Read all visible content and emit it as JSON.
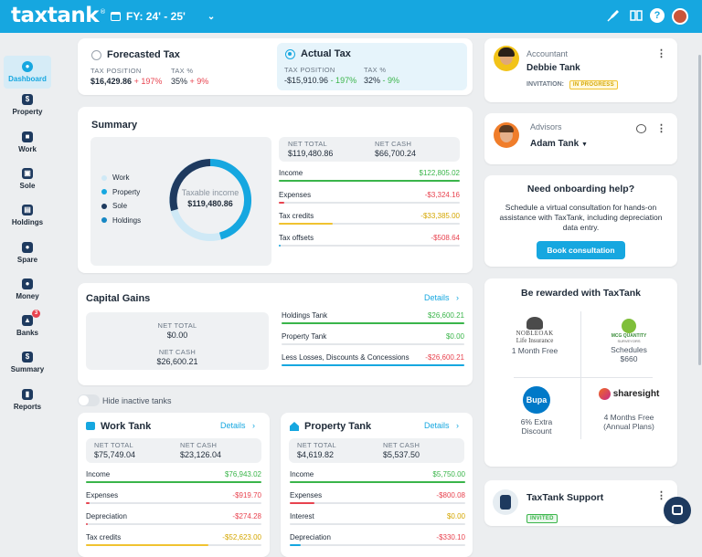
{
  "brand": {
    "name": "taxtank",
    "reg": "®"
  },
  "fy": {
    "label": "FY: 24' - 25'"
  },
  "sidebar": [
    {
      "label": "Dashboard",
      "icon": "gauge-icon",
      "active": true
    },
    {
      "label": "Property",
      "icon": "dollar-icon"
    },
    {
      "label": "Work",
      "icon": "briefcase-icon"
    },
    {
      "label": "Sole",
      "icon": "store-icon"
    },
    {
      "label": "Holdings",
      "icon": "holdings-icon"
    },
    {
      "label": "Spare",
      "icon": "coins-icon"
    },
    {
      "label": "Money",
      "icon": "piggy-icon"
    },
    {
      "label": "Banks",
      "icon": "bank-icon",
      "badge": "3"
    },
    {
      "label": "Summary",
      "icon": "dollar-doc-icon"
    },
    {
      "label": "Reports",
      "icon": "bar-chart-icon"
    }
  ],
  "tax": {
    "forecasted": {
      "title": "Forecasted Tax",
      "pos_label": "TAX POSITION",
      "pos": "$16,429.86",
      "pos_delta": "+ 197%",
      "pct_label": "TAX %",
      "pct": "35%",
      "pct_delta": "+ 9%"
    },
    "actual": {
      "title": "Actual Tax",
      "pos_label": "TAX POSITION",
      "pos": "-$15,910.96",
      "pos_delta": "- 197%",
      "pct_label": "TAX %",
      "pct": "32%",
      "pct_delta": "- 9%"
    }
  },
  "summary": {
    "title": "Summary",
    "legend": [
      "Work",
      "Property",
      "Sole",
      "Holdings"
    ],
    "donut_label": "Taxable income",
    "donut_value": "$119,480.86",
    "net_total_label": "NET TOTAL",
    "net_total": "$119,480.86",
    "net_cash_label": "NET CASH",
    "net_cash": "$66,700.24",
    "rows": [
      {
        "label": "Income",
        "value": "$122,805.02",
        "fill": 1.0,
        "color": "#3ab54a"
      },
      {
        "label": "Expenses",
        "value": "-$3,324.16",
        "fill": 0.03,
        "color": "#e8434f"
      },
      {
        "label": "Tax credits",
        "value": "-$33,385.00",
        "fill": 0.3,
        "color": "#f0c330"
      },
      {
        "label": "Tax offsets",
        "value": "-$508.64",
        "fill": 0.01,
        "color": "#16a7e0"
      }
    ]
  },
  "capital": {
    "title": "Capital Gains",
    "details": "Details",
    "net_total_label": "NET TOTAL",
    "net_total": "$0.00",
    "net_cash_label": "NET CASH",
    "net_cash": "$26,600.21",
    "rows": [
      {
        "label": "Holdings Tank",
        "value": "$26,600.21",
        "fill": 1.0,
        "color": "#3ab54a"
      },
      {
        "label": "Property Tank",
        "value": "$0.00",
        "fill": 0,
        "color": "#3ab54a"
      },
      {
        "label": "Less Losses, Discounts & Concessions",
        "value": "-$26,600.21",
        "fill": 1.0,
        "color": "#16a7e0"
      }
    ]
  },
  "toggle": {
    "label": "Hide inactive tanks"
  },
  "work": {
    "title": "Work Tank",
    "details": "Details",
    "net_total_label": "NET TOTAL",
    "net_total": "$75,749.04",
    "net_cash_label": "NET CASH",
    "net_cash": "$23,126.04",
    "rows": [
      {
        "label": "Income",
        "value": "$76,943.02",
        "fill": 1.0,
        "color": "#3ab54a"
      },
      {
        "label": "Expenses",
        "value": "-$919.70",
        "fill": 0.02,
        "color": "#e8434f"
      },
      {
        "label": "Depreciation",
        "value": "-$274.28",
        "fill": 0.01,
        "color": "#e8434f"
      },
      {
        "label": "Tax credits",
        "value": "-$52,623.00",
        "fill": 0.7,
        "color": "#f0c330"
      }
    ]
  },
  "property": {
    "title": "Property Tank",
    "details": "Details",
    "net_total_label": "NET TOTAL",
    "net_total": "$4,619.82",
    "net_cash_label": "NET CASH",
    "net_cash": "$5,537.50",
    "rows": [
      {
        "label": "Income",
        "value": "$5,750.00",
        "fill": 1.0,
        "color": "#3ab54a"
      },
      {
        "label": "Expenses",
        "value": "-$800.08",
        "fill": 0.14,
        "color": "#e8434f"
      },
      {
        "label": "Interest",
        "value": "$0.00",
        "fill": 0,
        "color": "#f0c330"
      },
      {
        "label": "Depreciation",
        "value": "-$330.10",
        "fill": 0.06,
        "color": "#16a7e0"
      }
    ]
  },
  "accountant": {
    "role": "Accountant",
    "name": "Debbie Tank",
    "inv_label": "INVITATION:",
    "status": "IN PROGRESS"
  },
  "advisors": {
    "role": "Advisors",
    "name": "Adam Tank"
  },
  "onboarding": {
    "title": "Need onboarding help?",
    "text": "Schedule a virtual consultation for hands-on assistance with TaxTank, including depreciation data entry.",
    "button": "Book consultation"
  },
  "rewards": {
    "title": "Be rewarded with TaxTank",
    "items": [
      {
        "brand": "NOBLEOAK",
        "brand2": "Life Insurance",
        "offer": "1 Month Free"
      },
      {
        "brand": "MCG QUANTITY",
        "brand2": "SURVEYORS",
        "offer": "Schedules",
        "offer2": "$660"
      },
      {
        "brand": "Bupa",
        "offer": "6% Extra",
        "offer2": "Discount"
      },
      {
        "brand": "sharesight",
        "offer": "4 Months Free",
        "offer2": "(Annual Plans)"
      }
    ]
  },
  "support": {
    "title": "TaxTank Support",
    "status": "INVITED"
  }
}
